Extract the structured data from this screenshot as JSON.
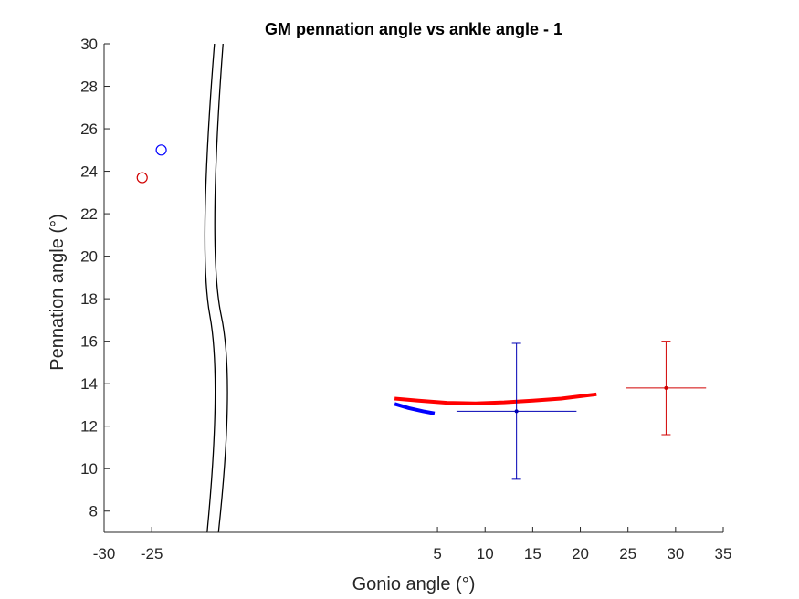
{
  "chart_data": {
    "type": "scatter",
    "title": "GM pennation angle vs ankle angle - 1",
    "xlabel": "Gonio angle (°)",
    "ylabel": "Pennation angle (°)",
    "xlim": [
      -30,
      35
    ],
    "ylim": [
      7,
      30
    ],
    "x_ticks": [
      "-30",
      "-25",
      "5",
      "10",
      "15",
      "20",
      "25",
      "30",
      "35"
    ],
    "x_tick_values": [
      -30,
      -25,
      5,
      10,
      15,
      20,
      25,
      30,
      35
    ],
    "y_ticks": [
      "8",
      "10",
      "12",
      "14",
      "16",
      "18",
      "20",
      "22",
      "24",
      "26",
      "28",
      "30"
    ],
    "y_tick_values": [
      8,
      10,
      12,
      14,
      16,
      18,
      20,
      22,
      24,
      26,
      28,
      30
    ],
    "axis_break": {
      "x_from": -20,
      "x_to": 0
    },
    "grid": false,
    "legend": "none",
    "series": [
      {
        "color": "#ff0000",
        "kind": "line",
        "points": [
          [
            0.5,
            13.3
          ],
          [
            3,
            13.2
          ],
          [
            6,
            13.1
          ],
          [
            9,
            13.07
          ],
          [
            12,
            13.12
          ],
          [
            15,
            13.2
          ],
          [
            18,
            13.3
          ],
          [
            21.7,
            13.5
          ]
        ]
      },
      {
        "color": "#0000ff",
        "kind": "line",
        "points": [
          [
            0.5,
            13.05
          ],
          [
            2,
            12.85
          ],
          [
            3.5,
            12.7
          ],
          [
            4.7,
            12.6
          ]
        ]
      },
      {
        "color": "#0000b4",
        "kind": "errorbar",
        "point": [
          13.3,
          12.7
        ],
        "x_error": [
          6.3,
          6.3
        ],
        "y_error": [
          3.2,
          3.2
        ]
      },
      {
        "color": "#d10000",
        "kind": "errorbar",
        "point": [
          29,
          13.8
        ],
        "x_error": [
          4.2,
          4.2
        ],
        "y_error": [
          2.2,
          2.2
        ]
      },
      {
        "color": "#d10000",
        "kind": "marker",
        "point": [
          -26,
          23.7
        ]
      },
      {
        "color": "#0000ff",
        "kind": "marker",
        "point": [
          -24,
          25
        ]
      }
    ]
  }
}
